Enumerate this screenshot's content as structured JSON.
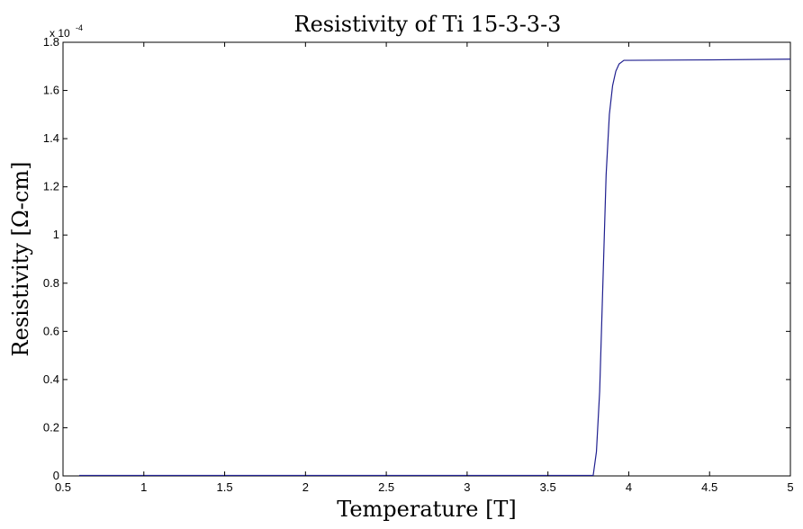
{
  "chart_data": {
    "type": "line",
    "title": "Resistivity of Ti 15-3-3-3",
    "xlabel": "Temperature [T]",
    "ylabel": "Resistivity [Ω-cm]",
    "y_multiplier": "x 10",
    "y_multiplier_exponent": "-4",
    "xlim": [
      0.5,
      5
    ],
    "ylim": [
      0,
      1.8
    ],
    "x_ticks": [
      "0.5",
      "1",
      "1.5",
      "2",
      "2.5",
      "3",
      "3.5",
      "4",
      "4.5",
      "5"
    ],
    "y_ticks": [
      "0",
      "0.2",
      "0.4",
      "0.6",
      "0.8",
      "1",
      "1.2",
      "1.4",
      "1.6",
      "1.8"
    ],
    "grid": false,
    "series": [
      {
        "color": "#1f1f8f",
        "x": [
          0.6,
          1.0,
          2.0,
          3.0,
          3.5,
          3.78,
          3.8,
          3.82,
          3.84,
          3.86,
          3.88,
          3.9,
          3.92,
          3.94,
          3.97,
          4.0,
          4.5,
          5.0
        ],
        "y": [
          0.002,
          0.002,
          0.002,
          0.002,
          0.002,
          0.002,
          0.1,
          0.35,
          0.8,
          1.25,
          1.5,
          1.62,
          1.68,
          1.71,
          1.725,
          1.725,
          1.727,
          1.73
        ]
      }
    ]
  }
}
